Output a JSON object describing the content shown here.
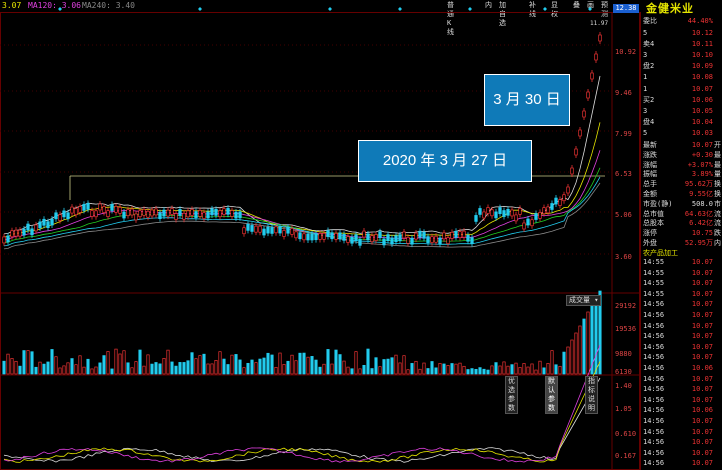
{
  "ma_header": {
    "ma_item1": "3.07",
    "ma_item2": "MA120: 3.06",
    "ma_item3": "MA240: 3.40"
  },
  "toolbar": {
    "items": [
      "普通K线",
      "内",
      "加自选",
      "补线",
      "显权",
      "叠",
      "画",
      "预测"
    ]
  },
  "price_axis": {
    "labels": [
      "12.38",
      "10.92",
      "9.46",
      "7.99",
      "6.53",
      "5.06",
      "3.60"
    ],
    "peak_label": "11.97",
    "current_badge": "12.38"
  },
  "volume_panel": {
    "title": "成交量",
    "labels": [
      "29192",
      "19536",
      "9880",
      "6130"
    ],
    "buttons": [
      "优选参数",
      "默认参数",
      "指标说明"
    ]
  },
  "indicator_panel": {
    "labels": [
      "1.40",
      "1.05",
      "0.610",
      "0.167"
    ]
  },
  "callouts": {
    "march30": "3 月 30 日",
    "march27": "2020 年 3 月 27 日"
  },
  "stock": {
    "name": "金健米业",
    "weibi_label": "委比",
    "weibi_value": "44.40%"
  },
  "order_book": {
    "sell_label": "卖盘",
    "buy_label": "买盘",
    "sell": [
      {
        "level": "5",
        "price": "10.12"
      },
      {
        "level": "4",
        "price": "10.11"
      },
      {
        "level": "3",
        "price": "10.10"
      },
      {
        "level": "2",
        "price": "10.09"
      },
      {
        "level": "1",
        "price": "10.08"
      }
    ],
    "buy": [
      {
        "level": "1",
        "price": "10.07"
      },
      {
        "level": "2",
        "price": "10.06"
      },
      {
        "level": "3",
        "price": "10.05"
      },
      {
        "level": "4",
        "price": "10.04"
      },
      {
        "level": "5",
        "price": "10.03"
      }
    ]
  },
  "quote": [
    {
      "label": "最新",
      "value": "10.07",
      "extra": "开"
    },
    {
      "label": "涨跌",
      "value": "+0.30",
      "extra": "最"
    },
    {
      "label": "涨幅",
      "value": "+3.07%",
      "extra": "最"
    },
    {
      "label": "振幅",
      "value": "3.89%",
      "extra": "量"
    },
    {
      "label": "总手",
      "value": "95.62万",
      "extra": "换"
    },
    {
      "label": "金额",
      "value": "9.55亿",
      "extra": "换"
    },
    {
      "label": "市盈(静)",
      "value": "508.0",
      "extra": "市"
    },
    {
      "label": "总市值",
      "value": "64.63亿",
      "extra": "流"
    },
    {
      "label": "总股本",
      "value": "6.42亿",
      "extra": "流"
    },
    {
      "label": "涨停",
      "value": "10.75",
      "extra": "跌"
    },
    {
      "label": "外盘",
      "value": "52.95万",
      "extra": "内"
    }
  ],
  "industry": "农产品加工",
  "ticks": [
    {
      "time": "14:55",
      "price": "10.07"
    },
    {
      "time": "14:55",
      "price": "10.07"
    },
    {
      "time": "14:55",
      "price": "10.07"
    },
    {
      "time": "14:55",
      "price": "10.07"
    },
    {
      "time": "14:56",
      "price": "10.07"
    },
    {
      "time": "14:56",
      "price": "10.07"
    },
    {
      "time": "14:56",
      "price": "10.07"
    },
    {
      "time": "14:56",
      "price": "10.07"
    },
    {
      "time": "14:56",
      "price": "10.07"
    },
    {
      "time": "14:56",
      "price": "10.07"
    },
    {
      "time": "14:56",
      "price": "10.06"
    },
    {
      "time": "14:56",
      "price": "10.07"
    },
    {
      "time": "14:56",
      "price": "10.07"
    },
    {
      "time": "14:56",
      "price": "10.07"
    },
    {
      "time": "14:56",
      "price": "10.06"
    },
    {
      "time": "14:56",
      "price": "10.07"
    },
    {
      "time": "14:56",
      "price": "10.07"
    },
    {
      "time": "14:56",
      "price": "10.07"
    },
    {
      "time": "14:56",
      "price": "10.07"
    },
    {
      "time": "14:56",
      "price": "10.07"
    }
  ],
  "colors": {
    "up": "#e33",
    "down": "#2ce",
    "bg": "#000",
    "grid": "#600",
    "callout": "#0f7ab8"
  }
}
